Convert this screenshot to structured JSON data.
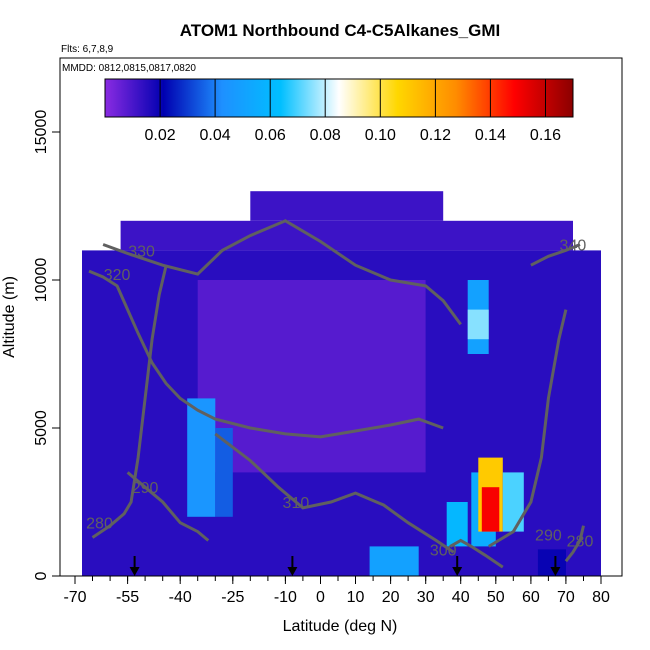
{
  "chart_data": {
    "type": "heatmap",
    "title": "ATOM1 Northbound C4-C5Alkanes_GMI",
    "flights_note": "Flts: 6,7,8,9",
    "dates_note": "MMDD: 0812,0815,0817,0820",
    "xlabel": "Latitude (deg N)",
    "ylabel": "Altitude (m)",
    "xlim": [
      -70,
      80
    ],
    "ylim": [
      0,
      17500
    ],
    "x_ticks": [
      -70,
      -55,
      -40,
      -25,
      -10,
      0,
      10,
      20,
      30,
      40,
      50,
      60,
      70,
      80
    ],
    "x_tick_labels": [
      "-70",
      "-55",
      "-40",
      "-25",
      "-10",
      "0",
      "10",
      "20",
      "30",
      "40",
      "50",
      "60",
      "70",
      "80"
    ],
    "y_ticks": [
      0,
      5000,
      10000,
      15000
    ],
    "y_tick_labels": [
      "0",
      "5000",
      "10000",
      "15000"
    ],
    "colorbar": {
      "range": [
        0,
        0.17
      ],
      "ticks": [
        0.02,
        0.04,
        0.06,
        0.08,
        0.1,
        0.12,
        0.14,
        0.16
      ],
      "tick_labels": [
        "0.02",
        "0.04",
        "0.06",
        "0.08",
        "0.10",
        "0.12",
        "0.14",
        "0.16"
      ],
      "colors": [
        "#8a2be2",
        "#0000b0",
        "#1e90ff",
        "#00bfff",
        "#ffffff",
        "#ffd700",
        "#ff8c00",
        "#ff0000",
        "#8b0000"
      ]
    },
    "field_regions": [
      {
        "lat": [
          -68,
          80
        ],
        "alt": [
          0,
          11000
        ],
        "value": 0.015
      },
      {
        "lat": [
          -57,
          72
        ],
        "alt": [
          11000,
          12000
        ],
        "value": 0.012
      },
      {
        "lat": [
          -20,
          35
        ],
        "alt": [
          12000,
          13000
        ],
        "value": 0.012
      },
      {
        "lat": [
          -35,
          30
        ],
        "alt": [
          3500,
          10000
        ],
        "value": 0.008
      },
      {
        "lat": [
          -38,
          -30
        ],
        "alt": [
          2000,
          6000
        ],
        "value": 0.045
      },
      {
        "lat": [
          -30,
          -25
        ],
        "alt": [
          2000,
          5000
        ],
        "value": 0.035
      },
      {
        "lat": [
          42,
          48
        ],
        "alt": [
          7500,
          10000
        ],
        "value": 0.05
      },
      {
        "lat": [
          42,
          48
        ],
        "alt": [
          8000,
          9000
        ],
        "value": 0.075
      },
      {
        "lat": [
          36,
          42
        ],
        "alt": [
          1000,
          2500
        ],
        "value": 0.06
      },
      {
        "lat": [
          43,
          50
        ],
        "alt": [
          1000,
          3500
        ],
        "value": 0.055
      },
      {
        "lat": [
          45,
          52
        ],
        "alt": [
          1500,
          4000
        ],
        "value": 0.11
      },
      {
        "lat": [
          46,
          51
        ],
        "alt": [
          1500,
          3000
        ],
        "value": 0.15
      },
      {
        "lat": [
          52,
          58
        ],
        "alt": [
          1500,
          3500
        ],
        "value": 0.07
      },
      {
        "lat": [
          14,
          28
        ],
        "alt": [
          0,
          1000
        ],
        "value": 0.05
      },
      {
        "lat": [
          62,
          70
        ],
        "alt": [
          0,
          900
        ],
        "value": 0.02
      }
    ],
    "contours": [
      {
        "label": "280",
        "label_at": [
          -63,
          1600
        ],
        "points": [
          [
            -65,
            1300
          ],
          [
            -60,
            1700
          ],
          [
            -56,
            2100
          ],
          [
            -54,
            2500
          ],
          [
            -52,
            4000
          ],
          [
            -50,
            6000
          ],
          [
            -48,
            8000
          ],
          [
            -46,
            9500
          ],
          [
            -44,
            10500
          ]
        ]
      },
      {
        "label": "290",
        "label_at": [
          -50,
          2800
        ],
        "points": [
          [
            -55,
            3500
          ],
          [
            -50,
            3000
          ],
          [
            -45,
            2500
          ],
          [
            -40,
            1800
          ],
          [
            -35,
            1500
          ],
          [
            -32,
            1200
          ]
        ]
      },
      {
        "label": "310",
        "label_at": [
          -7,
          2300
        ],
        "points": [
          [
            -30,
            4800
          ],
          [
            -20,
            3900
          ],
          [
            -12,
            3000
          ],
          [
            -5,
            2300
          ],
          [
            3,
            2500
          ],
          [
            10,
            2800
          ],
          [
            18,
            2400
          ],
          [
            25,
            1800
          ],
          [
            33,
            1200
          ],
          [
            38,
            800
          ]
        ]
      },
      {
        "label": "320",
        "label_at": [
          -58,
          10000
        ],
        "points": [
          [
            -66,
            10300
          ],
          [
            -62,
            10100
          ],
          [
            -58,
            9800
          ],
          [
            -55,
            9000
          ],
          [
            -52,
            8200
          ],
          [
            -48,
            7200
          ],
          [
            -44,
            6500
          ],
          [
            -40,
            6000
          ],
          [
            -35,
            5600
          ],
          [
            -30,
            5300
          ],
          [
            -20,
            5000
          ],
          [
            -10,
            4800
          ],
          [
            0,
            4700
          ],
          [
            10,
            4900
          ],
          [
            20,
            5100
          ],
          [
            28,
            5300
          ],
          [
            35,
            5000
          ]
        ]
      },
      {
        "label": "330",
        "label_at": [
          -51,
          10800
        ],
        "points": [
          [
            -62,
            11200
          ],
          [
            -55,
            10900
          ],
          [
            -45,
            10500
          ],
          [
            -35,
            10200
          ],
          [
            -28,
            11000
          ],
          [
            -20,
            11500
          ],
          [
            -10,
            12000
          ],
          [
            0,
            11300
          ],
          [
            10,
            10500
          ],
          [
            20,
            10000
          ],
          [
            30,
            9800
          ],
          [
            35,
            9300
          ],
          [
            40,
            8500
          ]
        ]
      },
      {
        "label": "340",
        "label_at": [
          72,
          11000
        ],
        "points": [
          [
            60,
            10500
          ],
          [
            65,
            10800
          ],
          [
            70,
            11000
          ],
          [
            74,
            11200
          ]
        ]
      },
      {
        "label": "300",
        "label_at": [
          35,
          700
        ],
        "points": [
          [
            52,
            300
          ],
          [
            47,
            700
          ],
          [
            43,
            1000
          ],
          [
            40,
            1200
          ],
          [
            37,
            1000
          ]
        ]
      },
      {
        "label": "290",
        "label_at": [
          65,
          1200
        ],
        "points": [
          [
            48,
            1000
          ],
          [
            55,
            1500
          ],
          [
            60,
            2500
          ],
          [
            63,
            4000
          ],
          [
            65,
            6000
          ],
          [
            68,
            8000
          ],
          [
            70,
            9000
          ]
        ]
      },
      {
        "label": "280",
        "label_at": [
          74,
          1000
        ],
        "points": [
          [
            70,
            500
          ],
          [
            72,
            800
          ],
          [
            74,
            1200
          ],
          [
            75,
            1700
          ]
        ]
      }
    ],
    "flight_markers": [
      -53,
      -8,
      39,
      67
    ]
  }
}
